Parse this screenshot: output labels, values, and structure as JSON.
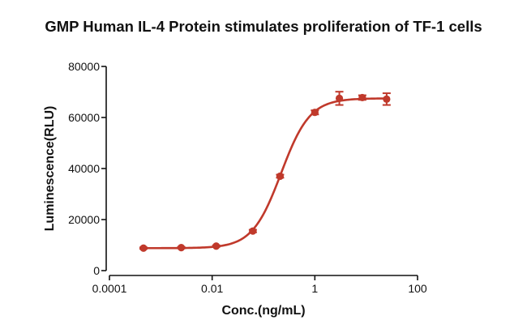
{
  "chart_data": {
    "type": "scatter",
    "title": "GMP Human IL-4 Protein stimulates proliferation of TF-1 cells",
    "xlabel": "Conc.(ng/mL)",
    "ylabel": "Luminescence(RLU)",
    "x_scale": "log",
    "xlim": [
      0.0001,
      100
    ],
    "ylim": [
      0,
      80000
    ],
    "x_ticks": [
      0.0001,
      0.01,
      1,
      100
    ],
    "x_tick_labels": [
      "0.0001",
      "0.01",
      "1",
      "100"
    ],
    "y_ticks": [
      0,
      20000,
      40000,
      60000,
      80000
    ],
    "y_tick_labels": [
      "0",
      "20000",
      "40000",
      "60000",
      "80000"
    ],
    "grid": false,
    "colors": {
      "series": "#c0392b"
    },
    "series": [
      {
        "points": [
          {
            "x": 0.00046,
            "y": 8800,
            "err": 300
          },
          {
            "x": 0.0025,
            "y": 9000,
            "err": 300
          },
          {
            "x": 0.012,
            "y": 9600,
            "err": 300
          },
          {
            "x": 0.062,
            "y": 15500,
            "err": 500
          },
          {
            "x": 0.21,
            "y": 37000,
            "err": 600
          },
          {
            "x": 1.0,
            "y": 62000,
            "err": 800
          },
          {
            "x": 3.0,
            "y": 67500,
            "err": 2600
          },
          {
            "x": 8.4,
            "y": 67800,
            "err": 900
          },
          {
            "x": 25.0,
            "y": 67200,
            "err": 2300
          }
        ],
        "fit": {
          "type": "4PL",
          "bottom": 8800,
          "top": 67500,
          "ec50": 0.22,
          "hill": 1.55
        }
      }
    ]
  }
}
